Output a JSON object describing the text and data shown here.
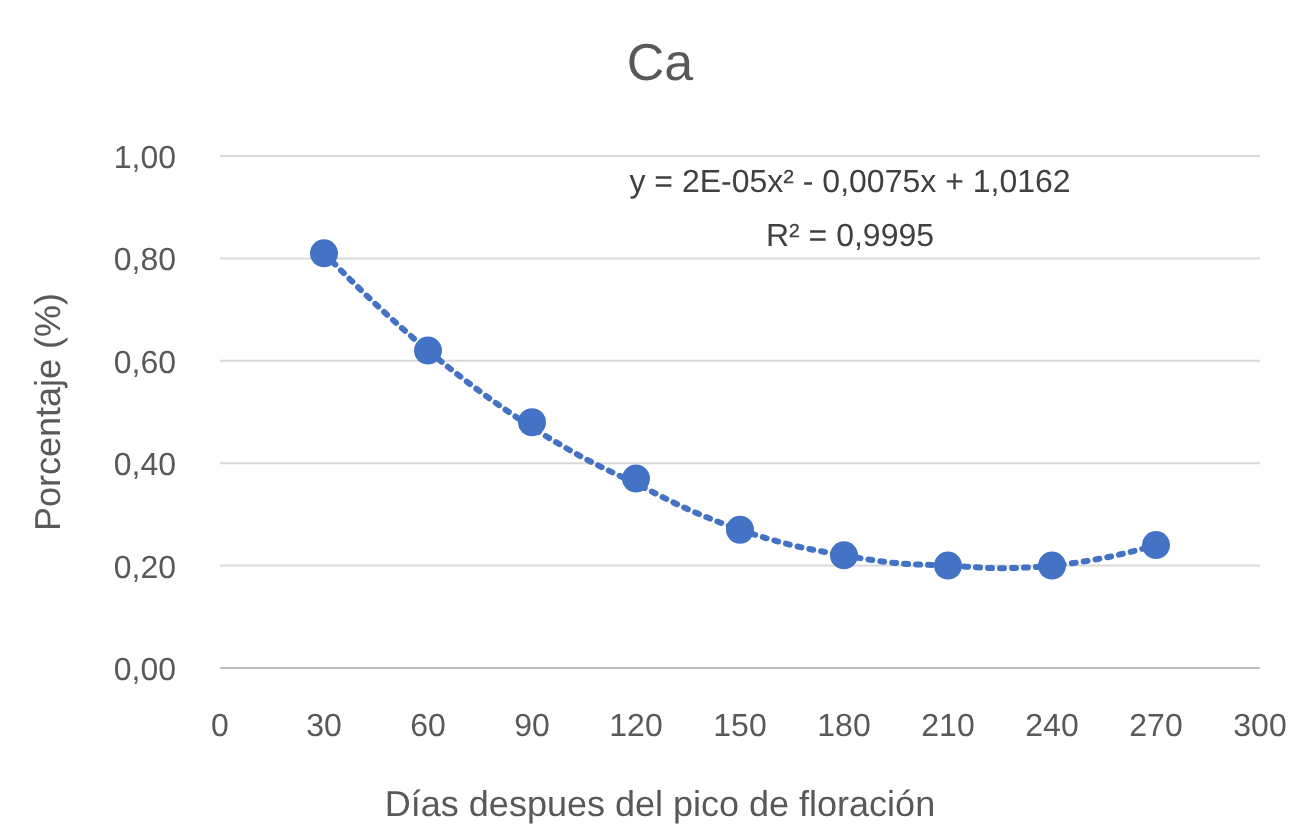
{
  "chart_data": {
    "type": "scatter",
    "title": "Ca",
    "xlabel": "Días despues del pico de floración",
    "ylabel": "Porcentaje (%)",
    "annotations": [
      "y = 2E-05x² - 0,0075x + 1,0162",
      "R² = 0,9995"
    ],
    "xlim": [
      0,
      300
    ],
    "xticks": [
      0,
      30,
      60,
      90,
      120,
      150,
      180,
      210,
      240,
      270,
      300
    ],
    "ylim": [
      0,
      1
    ],
    "yticks": [
      {
        "value": 0,
        "label": "0,00"
      },
      {
        "value": 0.2,
        "label": "0,20"
      },
      {
        "value": 0.4,
        "label": "0,40"
      },
      {
        "value": 0.6,
        "label": "0,60"
      },
      {
        "value": 0.8,
        "label": "0,80"
      },
      {
        "value": 1,
        "label": "1,00"
      }
    ],
    "grid": "y",
    "marker": "circle",
    "series": [
      {
        "color": "#4472c4",
        "x": [
          30,
          60,
          90,
          120,
          150,
          180,
          210,
          240,
          270
        ],
        "values": [
          0.81,
          0.62,
          0.48,
          0.37,
          0.27,
          0.22,
          0.2,
          0.2,
          0.24
        ]
      },
      {
        "type": "line",
        "color": "#4472c4",
        "line_style": "dotted",
        "marker": "none",
        "x": [
          30,
          45,
          60,
          75,
          90,
          105,
          120,
          135,
          150,
          165,
          180,
          195,
          210,
          225,
          240,
          255,
          270
        ],
        "values": [
          0.81,
          0.71,
          0.62,
          0.54,
          0.47,
          0.41,
          0.36,
          0.31,
          0.27,
          0.24,
          0.22,
          0.205,
          0.2,
          0.195,
          0.2,
          0.215,
          0.24
        ]
      }
    ]
  }
}
